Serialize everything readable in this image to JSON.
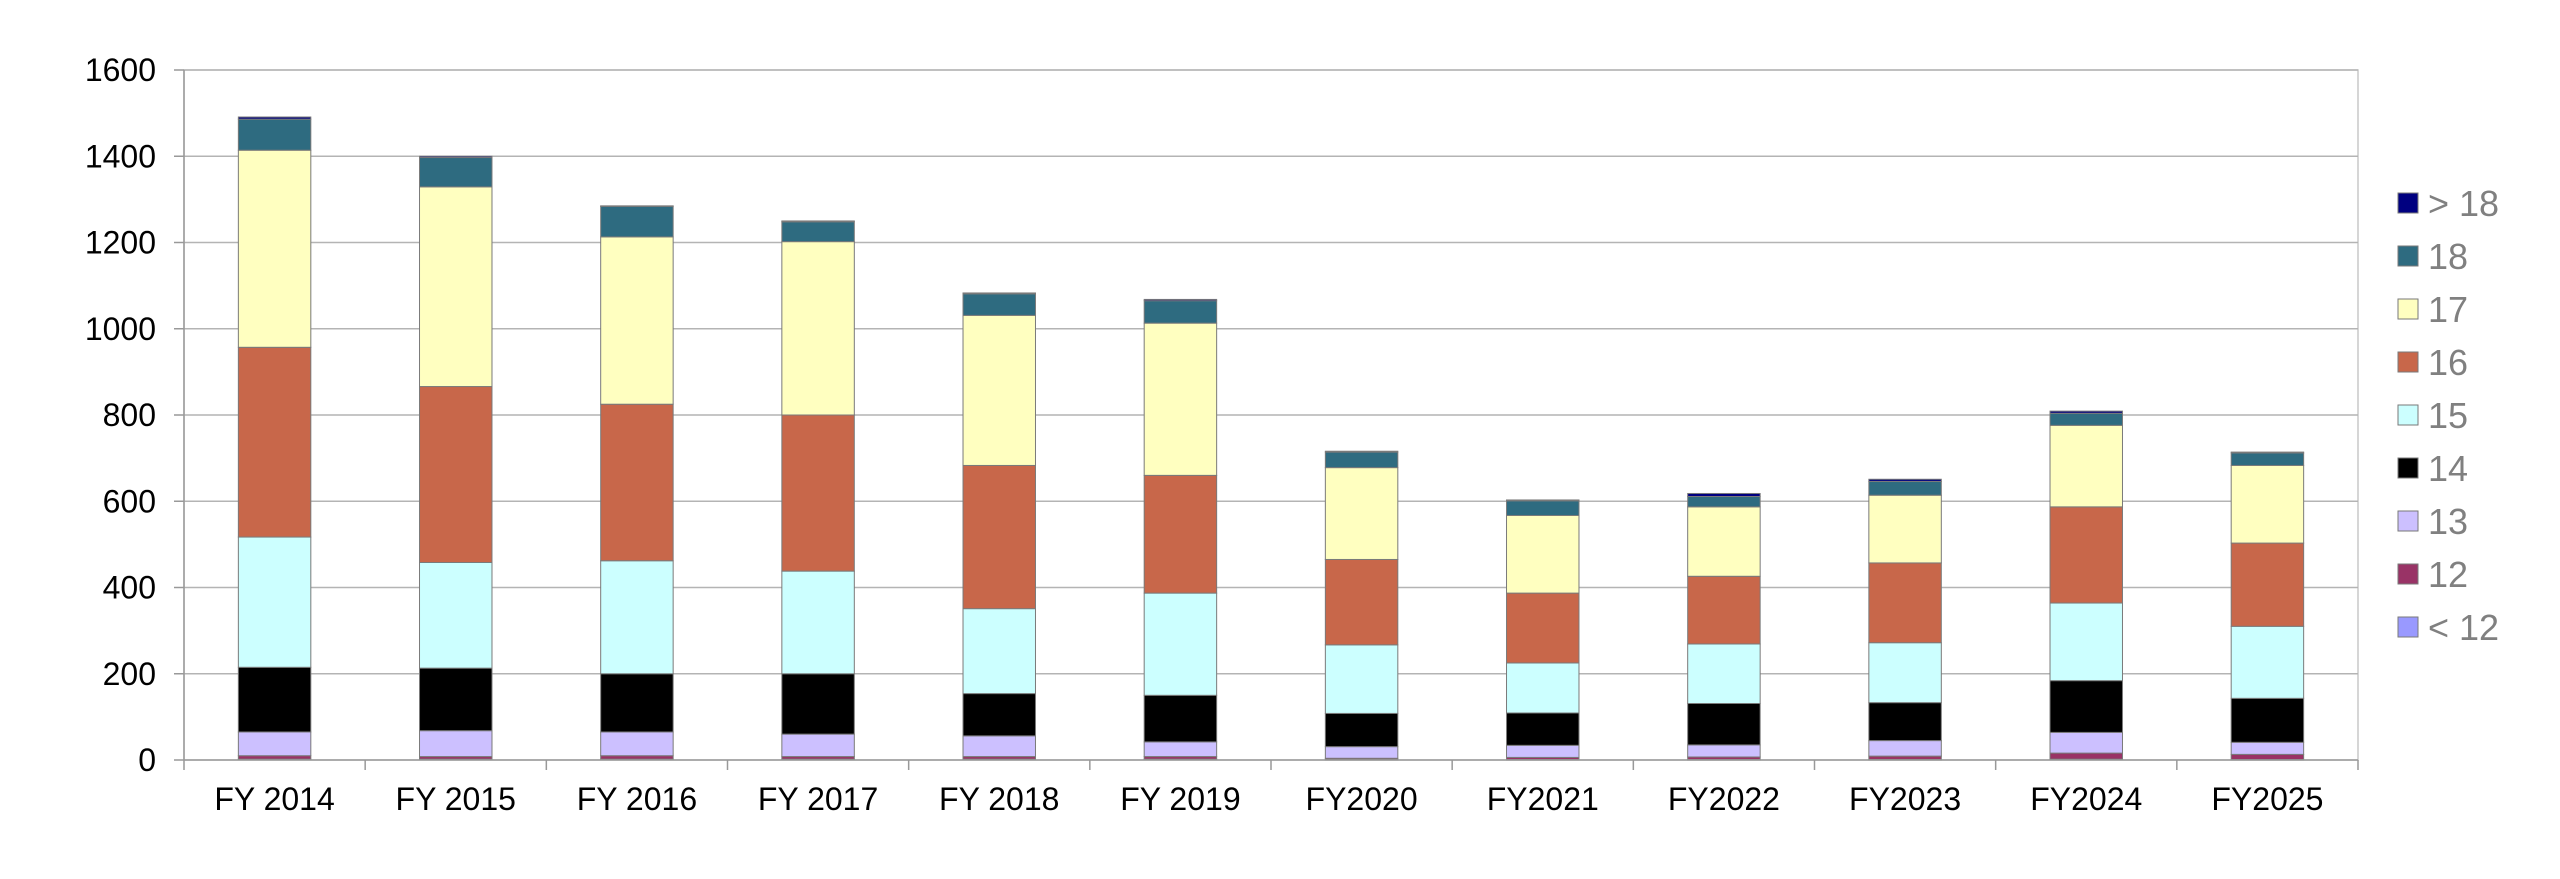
{
  "chart_data": {
    "type": "bar",
    "stacked": true,
    "title": "",
    "xlabel": "",
    "ylabel": "",
    "ylim": [
      0,
      1600
    ],
    "yticks": [
      0,
      200,
      400,
      600,
      800,
      1000,
      1200,
      1400,
      1600
    ],
    "grid": true,
    "legend_position": "right",
    "categories": [
      "FY 2014",
      "FY 2015",
      "FY 2016",
      "FY 2017",
      "FY 2018",
      "FY 2019",
      "FY2020",
      "FY2021",
      "FY2022",
      "FY2023",
      "FY2024",
      "FY2025"
    ],
    "series": [
      {
        "name": "< 12",
        "color": "#9999ff",
        "values": [
          2,
          2,
          2,
          2,
          2,
          2,
          1,
          1,
          1,
          1,
          2,
          1
        ]
      },
      {
        "name": "12",
        "color": "#993366",
        "values": [
          8,
          6,
          8,
          6,
          6,
          6,
          3,
          5,
          6,
          8,
          14,
          12
        ]
      },
      {
        "name": "13",
        "color": "#ccc0ff",
        "values": [
          55,
          60,
          55,
          52,
          48,
          34,
          27,
          28,
          28,
          36,
          48,
          28
        ]
      },
      {
        "name": "14",
        "color": "#000000",
        "values": [
          150,
          145,
          135,
          140,
          98,
          108,
          77,
          75,
          96,
          88,
          120,
          102
        ]
      },
      {
        "name": "15",
        "color": "#ccffff",
        "values": [
          302,
          245,
          262,
          238,
          197,
          237,
          159,
          116,
          138,
          139,
          180,
          167
        ]
      },
      {
        "name": "16",
        "color": "#c8674a",
        "values": [
          440,
          408,
          363,
          362,
          332,
          273,
          198,
          162,
          157,
          185,
          223,
          193
        ]
      },
      {
        "name": "17",
        "color": "#ffffc0",
        "values": [
          457,
          463,
          388,
          402,
          348,
          353,
          213,
          180,
          161,
          157,
          189,
          180
        ]
      },
      {
        "name": "18",
        "color": "#2e6b80",
        "values": [
          72,
          68,
          71,
          46,
          50,
          52,
          36,
          34,
          24,
          32,
          28,
          29
        ]
      },
      {
        "name": "> 18",
        "color": "#000080",
        "values": [
          5,
          3,
          1,
          2,
          2,
          3,
          2,
          2,
          7,
          5,
          5,
          2
        ]
      }
    ]
  }
}
